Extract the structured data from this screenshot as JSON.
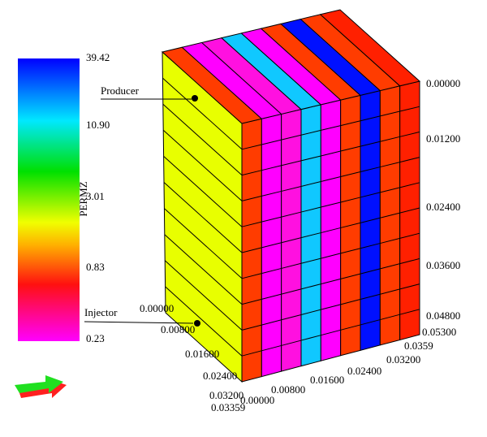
{
  "colorbar": {
    "title": "PERMZ",
    "labels": [
      "39.42",
      "10.90",
      "3.01",
      "0.83",
      "0.23"
    ]
  },
  "annotations": {
    "producer": "Producer",
    "injector": "Injector"
  },
  "axes": {
    "depth": [
      "0.00000",
      "0.01200",
      "0.02400",
      "0.03600",
      "0.04800",
      "0.05300"
    ],
    "x": [
      "0.00000",
      "0.00800",
      "0.01600",
      "0.02400",
      "0.03200",
      "0.0359"
    ],
    "y": [
      "0.00000",
      "0.00800",
      "0.01600",
      "0.02400",
      "0.03200",
      "0.03359"
    ]
  }
}
